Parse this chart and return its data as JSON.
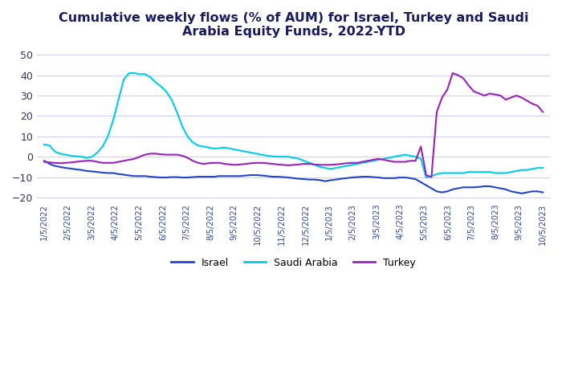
{
  "title": "Cumulative weekly flows (% of AUM) for Israel, Turkey and Saudi\nArabia Equity Funds, 2022-YTD",
  "ylim": [
    -22,
    55
  ],
  "yticks": [
    -20,
    -10,
    0,
    10,
    20,
    30,
    40,
    50
  ],
  "background_color": "#ffffff",
  "grid_color": "#d0d0f0",
  "israel_color": "#2244cc",
  "saudi_color": "#00ccee",
  "turkey_color": "#9922bb",
  "x_tick_labels": [
    "1/5/2022",
    "2/5/2022",
    "3/5/2022",
    "4/5/2022",
    "5/5/2022",
    "6/5/2022",
    "7/5/2022",
    "8/5/2022",
    "9/5/2022",
    "10/5/2022",
    "11/5/2022",
    "12/5/2022",
    "1/5/2023",
    "2/5/2023",
    "3/5/2023",
    "4/5/2023",
    "5/5/2023",
    "6/5/2023",
    "7/5/2023",
    "8/5/2023",
    "9/5/2023",
    "10/5/2023"
  ],
  "israel": [
    -2.0,
    -3.5,
    -4.5,
    -5.0,
    -5.5,
    -5.8,
    -6.2,
    -6.5,
    -7.0,
    -7.2,
    -7.5,
    -7.8,
    -8.0,
    -8.0,
    -8.5,
    -8.8,
    -9.2,
    -9.5,
    -9.5,
    -9.5,
    -9.8,
    -10.0,
    -10.2,
    -10.2,
    -10.0,
    -10.0,
    -10.2,
    -10.2,
    -10.0,
    -9.8,
    -9.8,
    -9.8,
    -9.8,
    -9.5,
    -9.5,
    -9.5,
    -9.5,
    -9.5,
    -9.2,
    -9.0,
    -9.0,
    -9.2,
    -9.5,
    -9.8,
    -9.8,
    -10.0,
    -10.2,
    -10.5,
    -10.8,
    -11.0,
    -11.2,
    -11.2,
    -11.5,
    -12.0,
    -11.5,
    -11.2,
    -10.8,
    -10.5,
    -10.2,
    -10.0,
    -9.8,
    -9.8,
    -10.0,
    -10.2,
    -10.5,
    -10.5,
    -10.5,
    -10.2,
    -10.2,
    -10.5,
    -11.0,
    -12.5,
    -14.0,
    -15.5,
    -17.0,
    -17.5,
    -17.0,
    -16.0,
    -15.5,
    -15.0,
    -15.0,
    -15.0,
    -14.8,
    -14.5,
    -14.5,
    -15.0,
    -15.5,
    -16.0,
    -17.0,
    -17.5,
    -18.0,
    -17.5,
    -17.0,
    -17.0,
    -17.5
  ],
  "saudi": [
    6.0,
    5.5,
    2.5,
    1.5,
    1.0,
    0.5,
    0.2,
    0.0,
    -0.5,
    0.0,
    2.0,
    5.0,
    10.0,
    18.0,
    28.0,
    38.0,
    41.0,
    41.0,
    40.5,
    40.5,
    39.0,
    36.5,
    34.5,
    32.0,
    28.0,
    22.0,
    15.0,
    10.0,
    7.0,
    5.5,
    5.0,
    4.5,
    4.0,
    4.2,
    4.5,
    4.0,
    3.5,
    3.0,
    2.5,
    2.0,
    1.5,
    1.0,
    0.5,
    0.2,
    0.0,
    0.0,
    0.0,
    -0.5,
    -1.0,
    -2.0,
    -3.0,
    -4.0,
    -5.0,
    -5.5,
    -6.0,
    -5.5,
    -5.0,
    -4.5,
    -4.0,
    -3.5,
    -3.0,
    -2.5,
    -2.0,
    -1.5,
    -1.0,
    -0.5,
    0.0,
    0.5,
    1.0,
    0.5,
    0.0,
    -1.0,
    -10.2,
    -9.5,
    -8.5,
    -8.0,
    -8.0,
    -8.0,
    -8.0,
    -8.0,
    -7.5,
    -7.5,
    -7.5,
    -7.5,
    -7.5,
    -8.0,
    -8.0,
    -8.0,
    -7.5,
    -7.0,
    -6.5,
    -6.5,
    -6.0,
    -5.5,
    -5.5
  ],
  "turkey": [
    -2.5,
    -2.8,
    -3.0,
    -3.2,
    -3.0,
    -2.8,
    -2.5,
    -2.2,
    -2.0,
    -2.0,
    -2.5,
    -3.0,
    -3.0,
    -3.0,
    -2.5,
    -2.0,
    -1.5,
    -1.0,
    0.0,
    1.0,
    1.5,
    1.5,
    1.2,
    1.0,
    1.0,
    1.0,
    0.5,
    -0.5,
    -2.0,
    -3.0,
    -3.5,
    -3.2,
    -3.0,
    -3.0,
    -3.5,
    -3.8,
    -4.0,
    -3.8,
    -3.5,
    -3.2,
    -3.0,
    -3.0,
    -3.2,
    -3.5,
    -3.8,
    -4.0,
    -4.2,
    -4.0,
    -3.8,
    -3.5,
    -3.5,
    -3.8,
    -4.0,
    -4.0,
    -4.0,
    -3.8,
    -3.5,
    -3.2,
    -3.0,
    -3.0,
    -2.5,
    -2.0,
    -1.5,
    -1.0,
    -1.5,
    -2.0,
    -2.5,
    -2.5,
    -2.5,
    -2.0,
    -2.0,
    5.0,
    -9.0,
    -10.0,
    22.0,
    29.0,
    33.0,
    41.0,
    40.0,
    38.5,
    35.0,
    32.0,
    31.0,
    30.0,
    31.0,
    30.5,
    30.0,
    28.0,
    29.0,
    30.0,
    29.0,
    27.5,
    26.0,
    25.0,
    22.0
  ]
}
